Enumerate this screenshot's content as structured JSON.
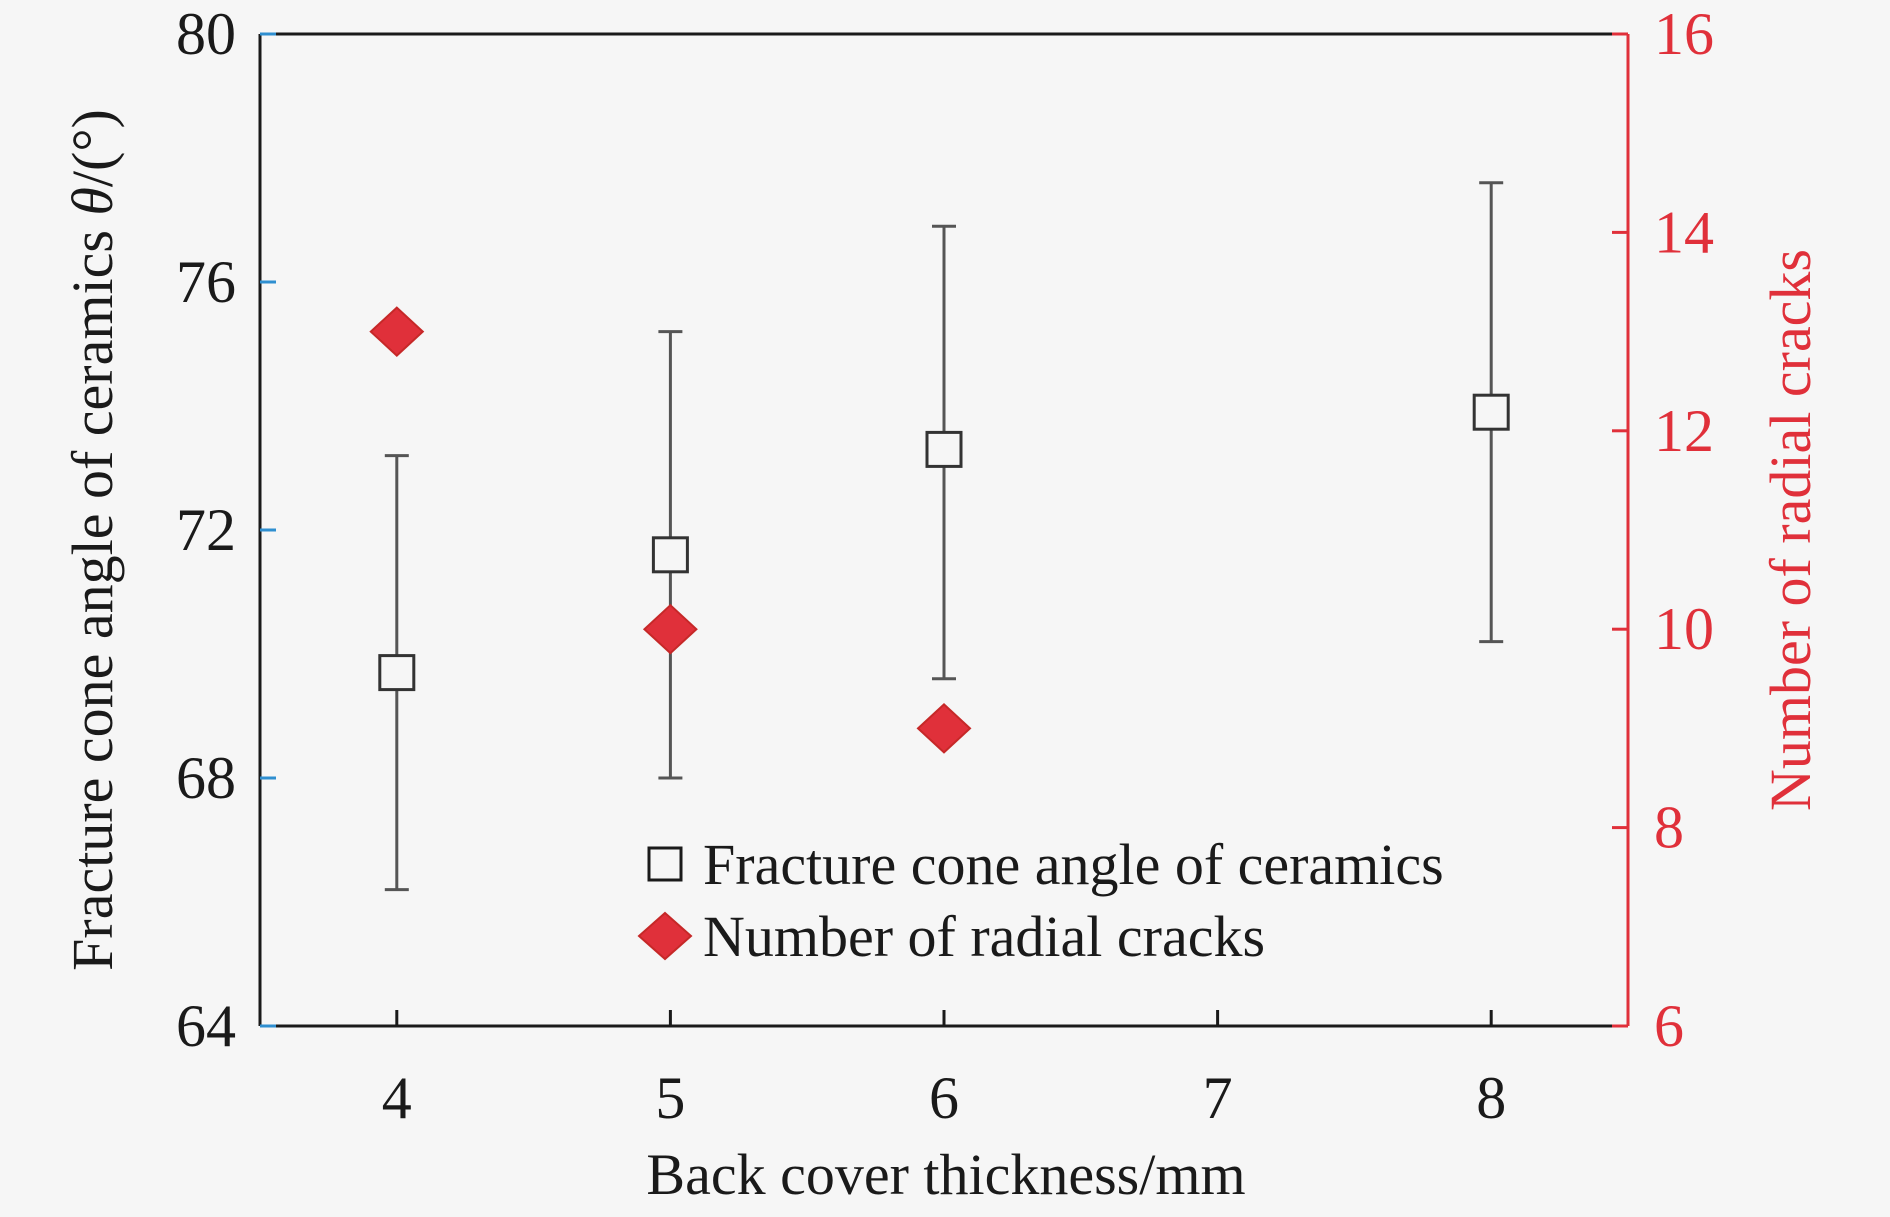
{
  "chart_data": {
    "type": "scatter",
    "x_axis": {
      "label": "Back cover thickness/mm",
      "range": [
        3.5,
        8.5
      ],
      "ticks": [
        4,
        5,
        6,
        7,
        8
      ],
      "tick_labels": [
        "4",
        "5",
        "6",
        "7",
        "8"
      ]
    },
    "y_axis_left": {
      "label_main": "Fracture cone angle of ceramics ",
      "label_symbol": "θ",
      "label_unit": "/(°)",
      "range": [
        64,
        80
      ],
      "ticks": [
        64,
        68,
        72,
        76,
        80
      ],
      "tick_labels": [
        "64",
        "68",
        "72",
        "76",
        "80"
      ],
      "color": "#2f8fd0"
    },
    "y_axis_right": {
      "label": "Number of radial cracks",
      "range": [
        6,
        16
      ],
      "ticks": [
        6,
        8,
        10,
        12,
        14,
        16
      ],
      "tick_labels": [
        "6",
        "8",
        "10",
        "12",
        "14",
        "16"
      ],
      "color": "#e0303a"
    },
    "series": [
      {
        "name": "Fracture cone angle of ceramics",
        "axis": "left",
        "marker": "open-square",
        "color": "#333333",
        "points": [
          {
            "x": 4,
            "y": 69.7,
            "err_low": 66.2,
            "err_high": 73.2
          },
          {
            "x": 5,
            "y": 71.6,
            "err_low": 68.0,
            "err_high": 75.2
          },
          {
            "x": 6,
            "y": 73.3,
            "err_low": 69.6,
            "err_high": 76.9
          },
          {
            "x": 8,
            "y": 73.9,
            "err_low": 70.2,
            "err_high": 77.6
          }
        ]
      },
      {
        "name": "Number of radial cracks",
        "axis": "right",
        "marker": "filled-diamond",
        "color": "#e0303a",
        "points": [
          {
            "x": 4,
            "y": 13
          },
          {
            "x": 5,
            "y": 10
          },
          {
            "x": 6,
            "y": 9
          }
        ]
      }
    ],
    "legend_placement": "bottom-center",
    "grid": false
  }
}
